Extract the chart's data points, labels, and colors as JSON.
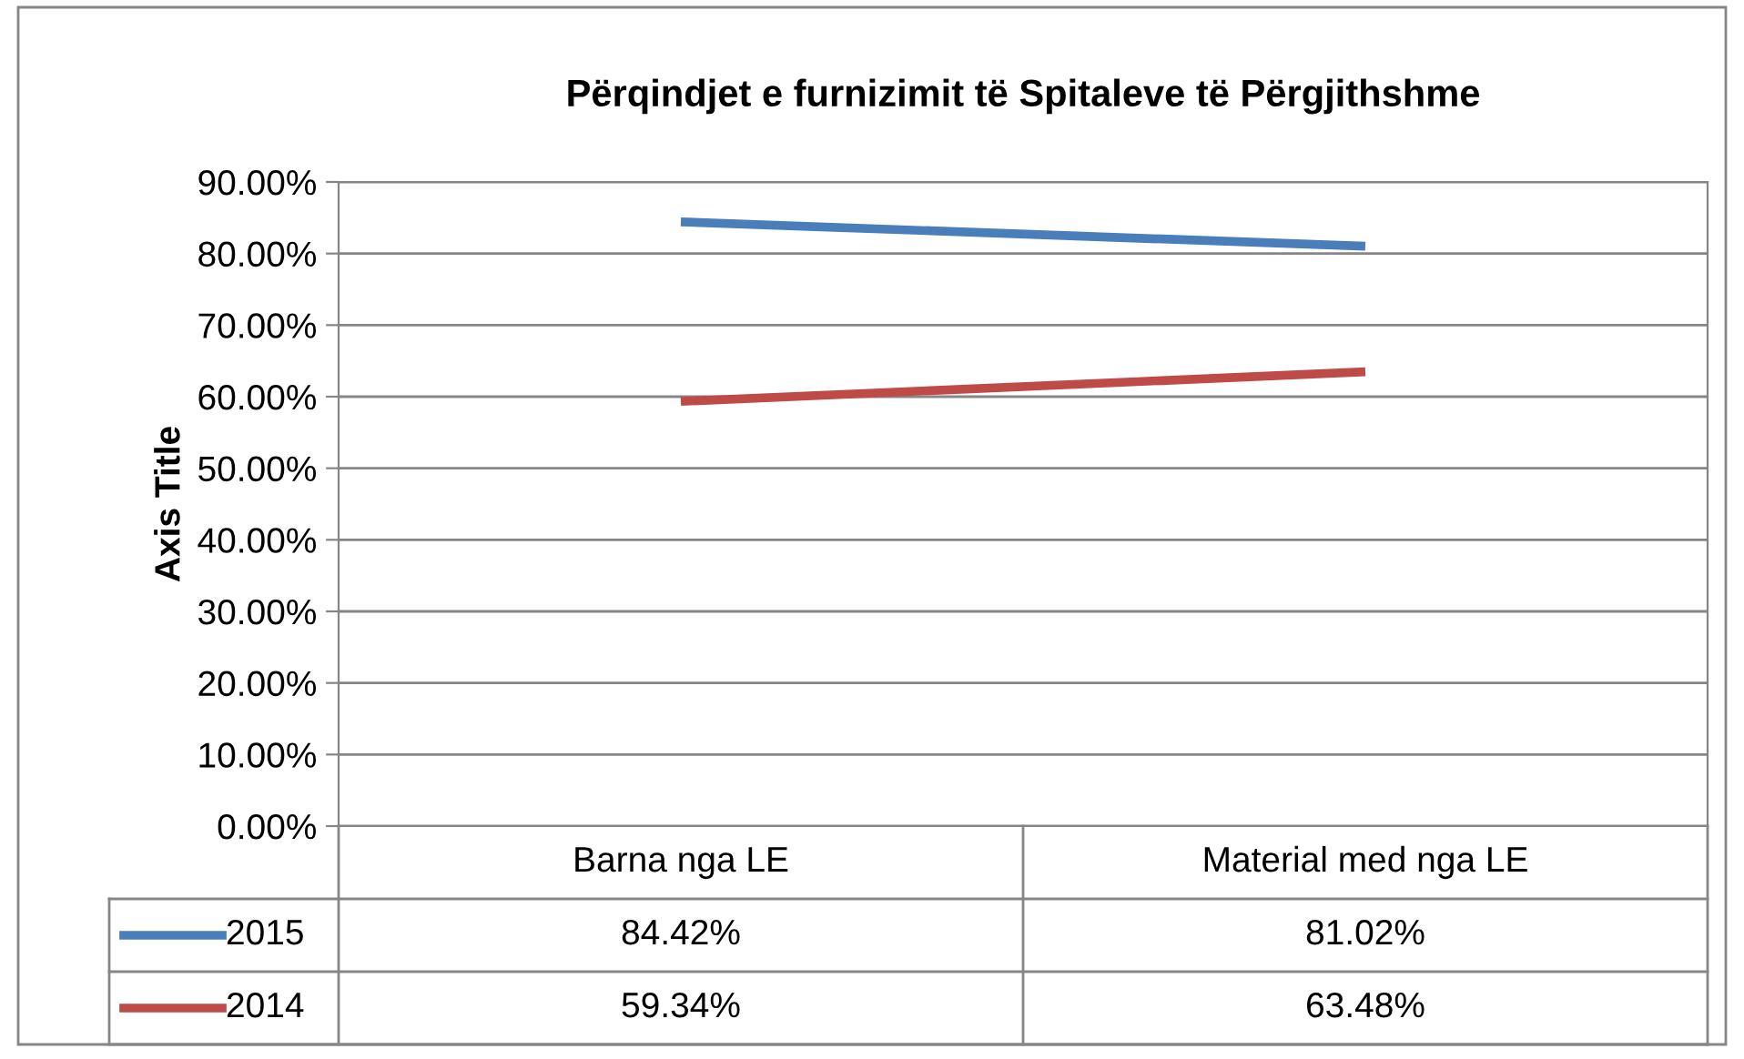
{
  "chart_data": {
    "type": "line",
    "title": "Përqindjet e furnizimit të Spitaleve të Përgjithshme",
    "ylabel": "Axis Title",
    "categories": [
      "Barna nga LE",
      "Material med nga LE"
    ],
    "series": [
      {
        "name": "2015",
        "color": "#4a7ebb",
        "values": [
          84.42,
          81.02
        ],
        "value_labels": [
          "84.42%",
          "81.02%"
        ]
      },
      {
        "name": "2014",
        "color": "#be4b48",
        "values": [
          59.34,
          63.48
        ],
        "value_labels": [
          "59.34%",
          "63.48%"
        ]
      }
    ],
    "ylim": [
      0,
      90
    ],
    "yticks": [
      {
        "value": 0,
        "label": "0.00%"
      },
      {
        "value": 10,
        "label": "10.00%"
      },
      {
        "value": 20,
        "label": "20.00%"
      },
      {
        "value": 30,
        "label": "30.00%"
      },
      {
        "value": 40,
        "label": "40.00%"
      },
      {
        "value": 50,
        "label": "50.00%"
      },
      {
        "value": 60,
        "label": "60.00%"
      },
      {
        "value": 70,
        "label": "70.00%"
      },
      {
        "value": 80,
        "label": "80.00%"
      },
      {
        "value": 90,
        "label": "90.00%"
      }
    ],
    "grid": "y",
    "legend": "bottom",
    "marker": "none",
    "line_style": "solid"
  }
}
